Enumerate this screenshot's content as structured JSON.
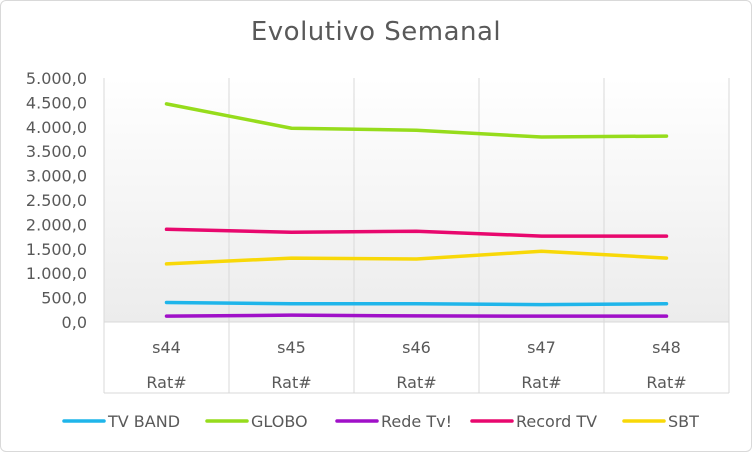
{
  "chart_data": {
    "type": "line",
    "title": "Evolutivo Semanal",
    "categories": [
      {
        "week": "s44",
        "group": "Rat#"
      },
      {
        "week": "s45",
        "group": "Rat#"
      },
      {
        "week": "s46",
        "group": "Rat#"
      },
      {
        "week": "s47",
        "group": "Rat#"
      },
      {
        "week": "s48",
        "group": "Rat#"
      }
    ],
    "ylim": [
      0,
      5000
    ],
    "yticks": [
      {
        "value": 0,
        "label": "0,0"
      },
      {
        "value": 500,
        "label": "500,0"
      },
      {
        "value": 1000,
        "label": "1.000,0"
      },
      {
        "value": 1500,
        "label": "1.500,0"
      },
      {
        "value": 2000,
        "label": "2.000,0"
      },
      {
        "value": 2500,
        "label": "2.500,0"
      },
      {
        "value": 3000,
        "label": "3.000,0"
      },
      {
        "value": 3500,
        "label": "3.500,0"
      },
      {
        "value": 4000,
        "label": "4.000,0"
      },
      {
        "value": 4500,
        "label": "4.500,0"
      },
      {
        "value": 5000,
        "label": "5.000,0"
      }
    ],
    "grid": "vertical",
    "legend_position": "bottom",
    "series": [
      {
        "name": "TV BAND",
        "color": "#1fb5ea",
        "values": [
          400,
          375,
          375,
          355,
          375
        ]
      },
      {
        "name": "GLOBO",
        "color": "#96dc1c",
        "values": [
          4470,
          3970,
          3930,
          3790,
          3810
        ]
      },
      {
        "name": "Rede Tv!",
        "color": "#a010c8",
        "values": [
          120,
          140,
          125,
          120,
          120
        ]
      },
      {
        "name": "Record TV",
        "color": "#e8086e",
        "values": [
          1900,
          1840,
          1860,
          1760,
          1760
        ]
      },
      {
        "name": "SBT",
        "color": "#f8d808",
        "values": [
          1190,
          1310,
          1290,
          1450,
          1310
        ]
      }
    ]
  }
}
